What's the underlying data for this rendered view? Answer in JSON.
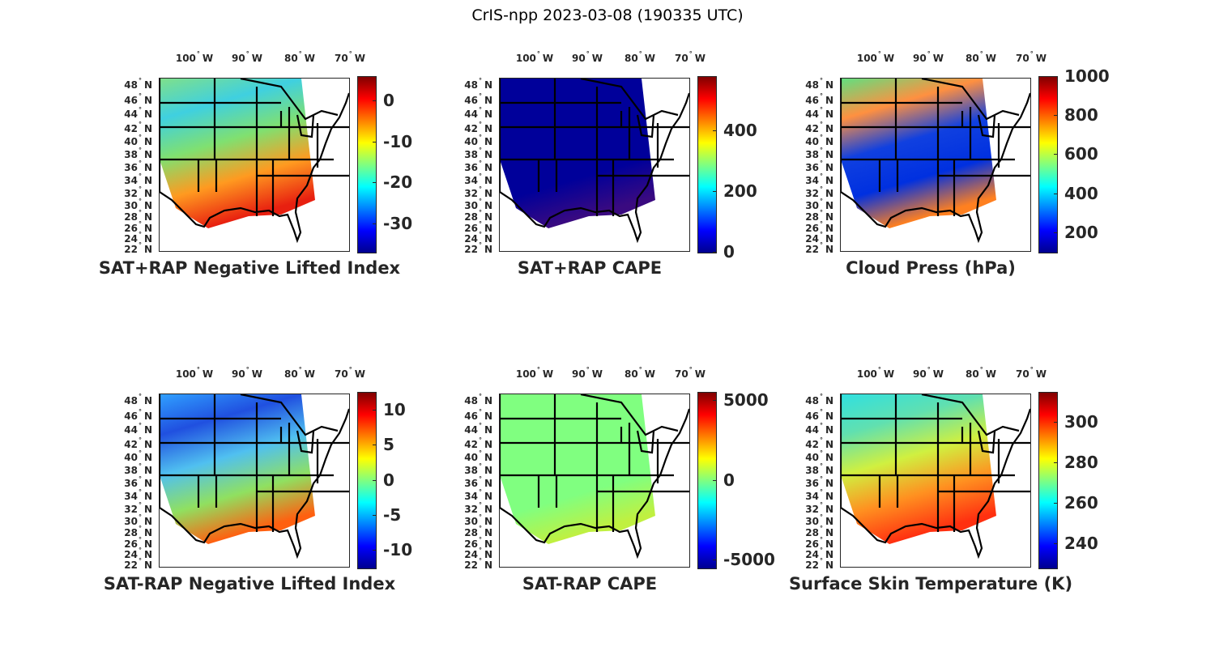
{
  "title": "CrIS-npp 2023-03-08 (190335 UTC)",
  "lon_labels": [
    "100",
    "90",
    "80",
    "70"
  ],
  "lon_suffix": "W",
  "lat_labels": [
    "48",
    "46",
    "44",
    "42",
    "40",
    "38",
    "36",
    "34",
    "32",
    "30",
    "28",
    "26",
    "24",
    "22"
  ],
  "lat_suffix": "N",
  "colormap": [
    "#00008f",
    "#0000ff",
    "#0080ff",
    "#00ffff",
    "#80ff80",
    "#ffff00",
    "#ff8000",
    "#ff0000",
    "#800000"
  ],
  "panels": [
    {
      "title": "SAT+RAP Negative Lifted Index",
      "range": [
        -37,
        6
      ],
      "ticks": [
        "0",
        "-10",
        "-20",
        "-30"
      ],
      "tick_values": [
        0,
        -10,
        -20,
        -30
      ],
      "swath_colors": [
        "#7fe08a",
        "#3fd0e0",
        "#80e070",
        "#ff9a20",
        "#e82010"
      ]
    },
    {
      "title": "SAT+RAP CAPE",
      "range": [
        0,
        580
      ],
      "ticks": [
        "400",
        "200",
        "0"
      ],
      "tick_values": [
        400,
        200,
        0
      ],
      "swath_colors": [
        "#00009a",
        "#00009a",
        "#00009a",
        "#00009a",
        "#3a0a80"
      ]
    },
    {
      "title": "Cloud Press (hPa)",
      "range": [
        100,
        1000
      ],
      "ticks": [
        "1000",
        "800",
        "600",
        "400",
        "200"
      ],
      "tick_values": [
        1000,
        800,
        600,
        400,
        200
      ],
      "swath_colors": [
        "#60e080",
        "#ff9040",
        "#1040e0",
        "#0030e0",
        "#ff8020"
      ]
    },
    {
      "title": "SAT-RAP Negative Lifted Index",
      "range": [
        -12.6,
        12.6
      ],
      "ticks": [
        "10",
        "5",
        "0",
        "-5",
        "-10"
      ],
      "tick_values": [
        10,
        5,
        0,
        -5,
        -10
      ],
      "swath_colors": [
        "#30a0ff",
        "#2050e0",
        "#50c0f0",
        "#90e060",
        "#ff6010"
      ]
    },
    {
      "title": "SAT-RAP CAPE",
      "range": [
        -5500,
        5500
      ],
      "ticks": [
        "5000",
        "0",
        "-5000"
      ],
      "tick_values": [
        5000,
        0,
        -5000
      ],
      "swath_colors": [
        "#80ff80",
        "#80ff80",
        "#80ff80",
        "#80ff80",
        "#c0f040"
      ]
    },
    {
      "title": "Surface Skin Temperature (K)",
      "range": [
        228,
        315
      ],
      "ticks": [
        "300",
        "280",
        "260",
        "240"
      ],
      "tick_values": [
        300,
        280,
        260,
        240
      ],
      "swath_colors": [
        "#30e0e0",
        "#60e0b0",
        "#d0f040",
        "#ff9020",
        "#ff3010"
      ]
    }
  ]
}
